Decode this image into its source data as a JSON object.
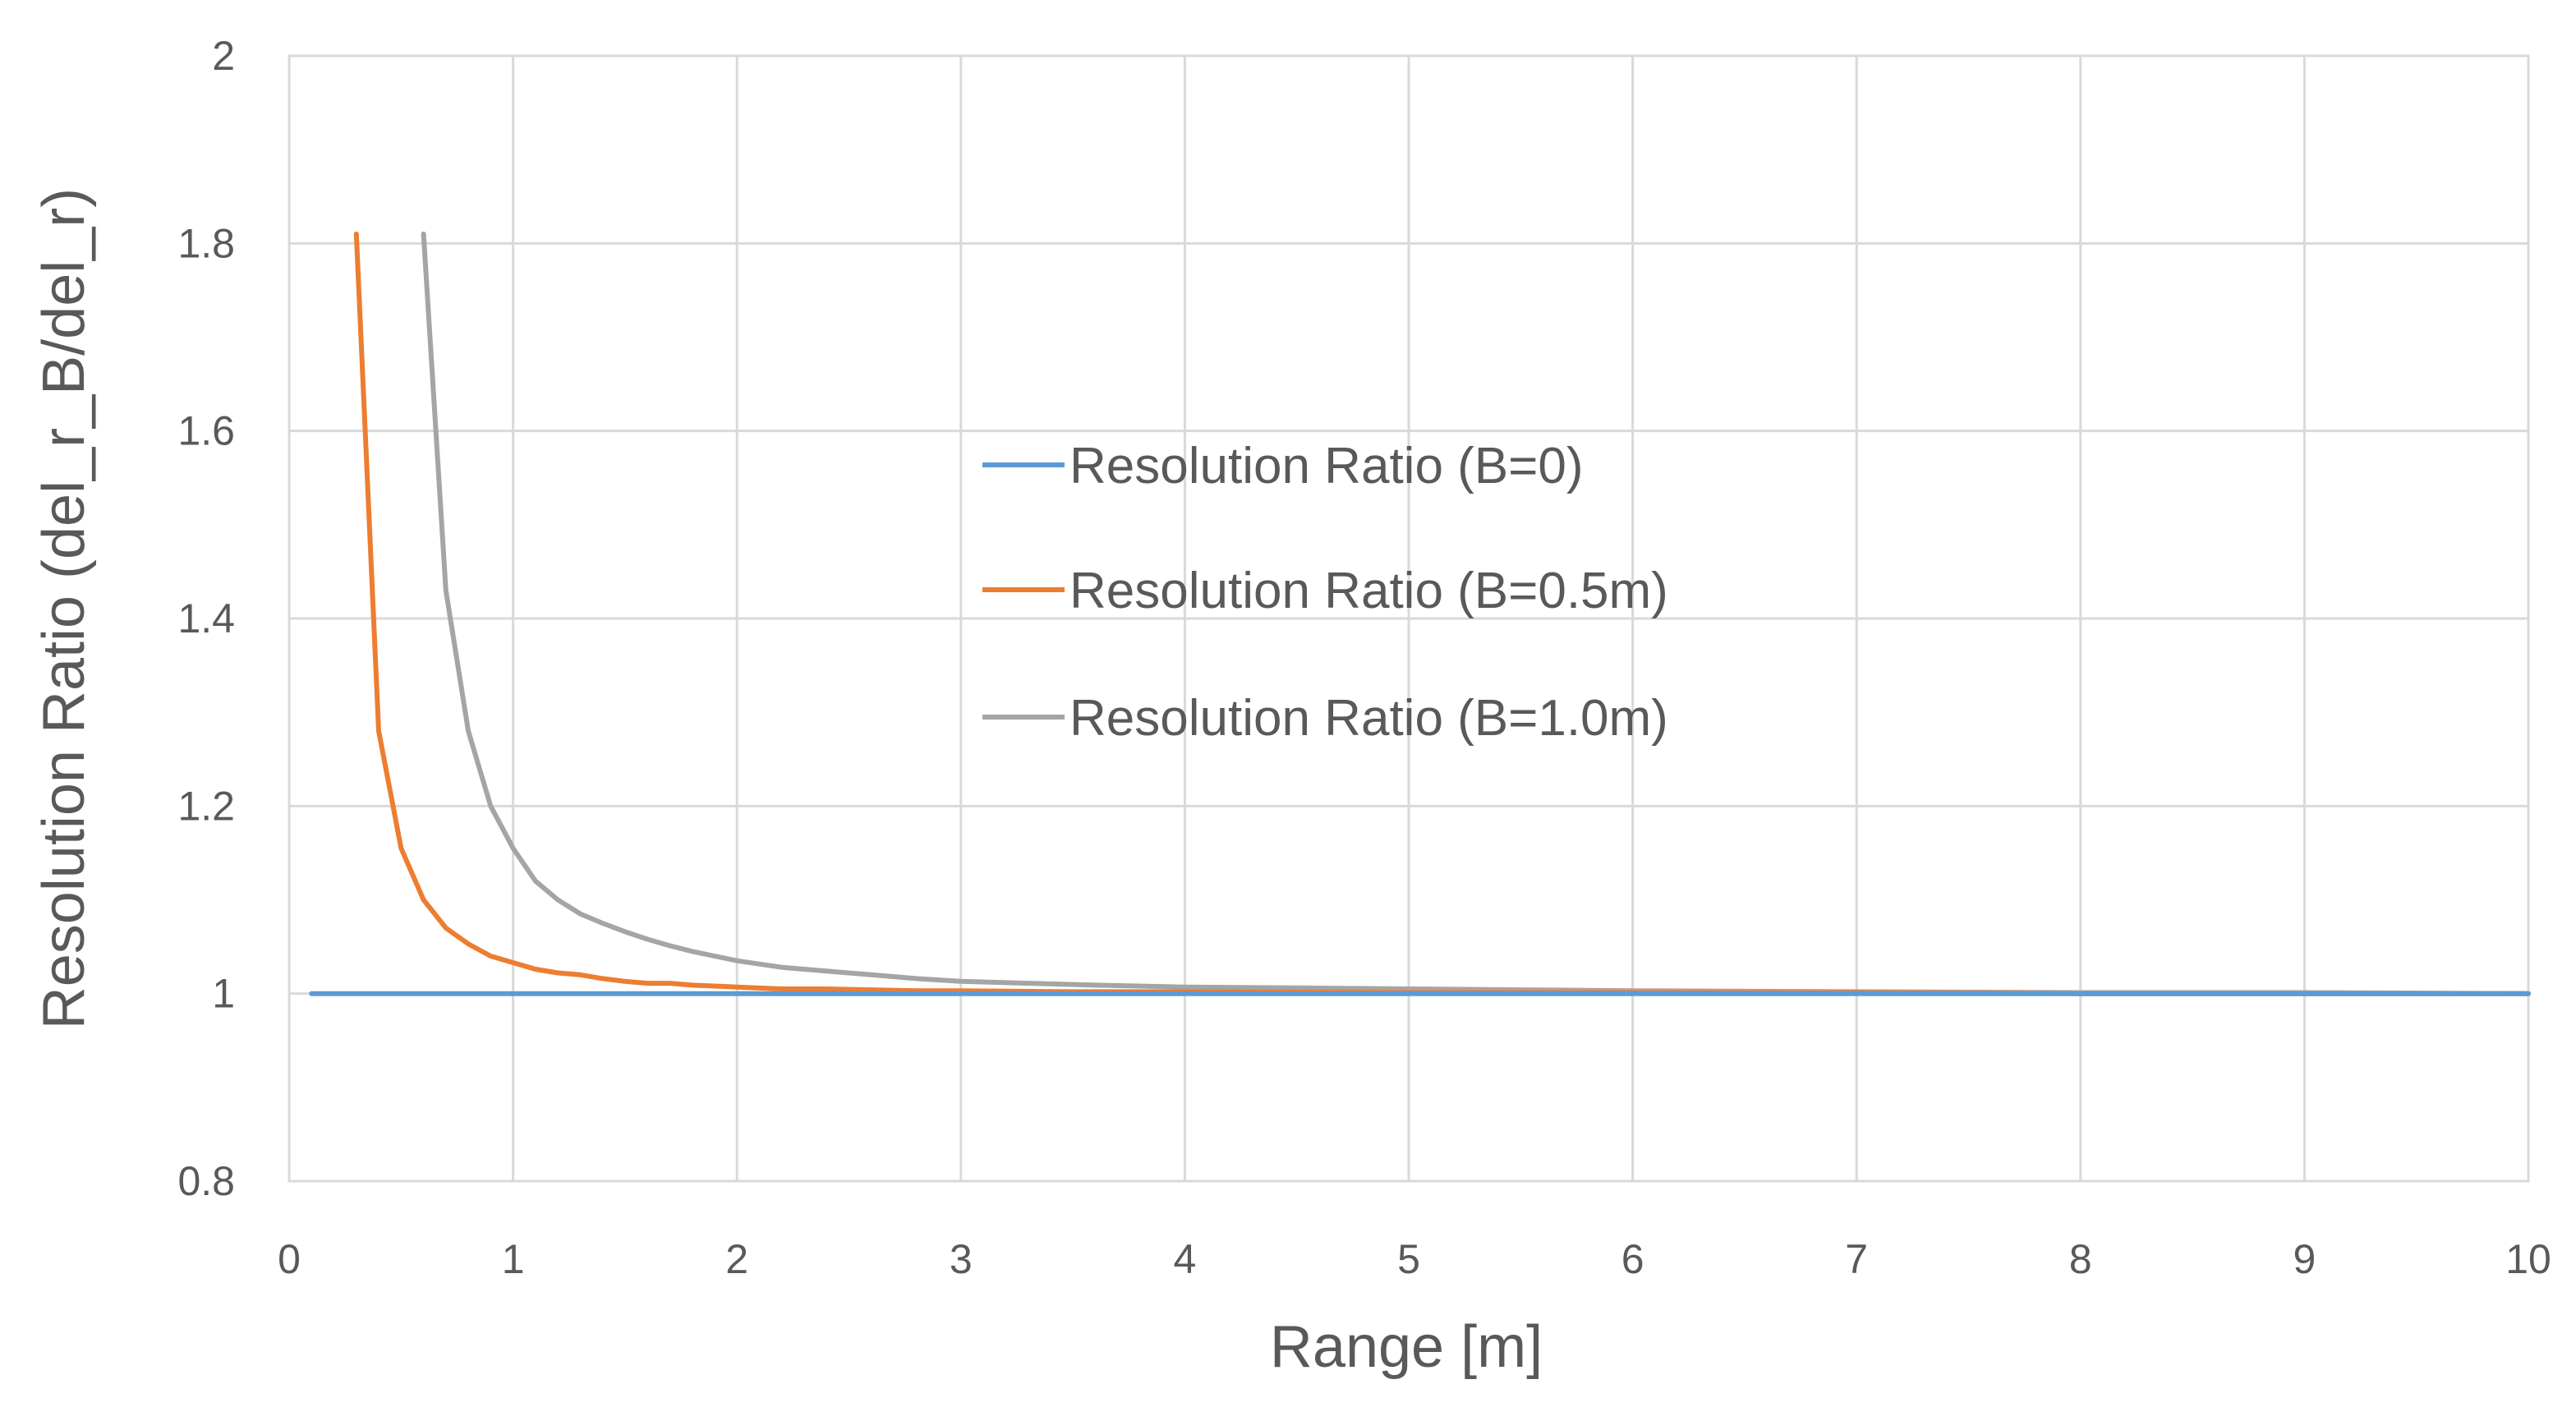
{
  "chart_data": {
    "type": "line",
    "title": "",
    "xlabel": "Range [m]",
    "ylabel": "Resolution Ratio (del_r_B/del_r)",
    "xlim": [
      0,
      10
    ],
    "ylim": [
      0.8,
      2
    ],
    "xticks": [
      "0",
      "1",
      "2",
      "3",
      "4",
      "5",
      "6",
      "7",
      "8",
      "9",
      "10"
    ],
    "yticks": [
      "0.8",
      "1",
      "1.2",
      "1.4",
      "1.6",
      "1.8",
      "2"
    ],
    "grid": true,
    "legend_position": "center",
    "series": [
      {
        "name": "Resolution Ratio (B=0)",
        "color": "#5B9BD5",
        "x": [
          0.1,
          1,
          2,
          3,
          4,
          5,
          6,
          7,
          8,
          9,
          10
        ],
        "y": [
          1,
          1,
          1,
          1,
          1,
          1,
          1,
          1,
          1,
          1,
          1
        ]
      },
      {
        "name": "Resolution Ratio (B=0.5m)",
        "color": "#ED7D31",
        "x": [
          0.3,
          0.4,
          0.5,
          0.6,
          0.7,
          0.8,
          0.9,
          1.0,
          1.1,
          1.2,
          1.3,
          1.4,
          1.5,
          1.6,
          1.7,
          1.8,
          1.9,
          2.0,
          2.2,
          2.4,
          2.6,
          2.8,
          3.0,
          3.5,
          4.0,
          5.0,
          6.0,
          7.0,
          8.0,
          9.0,
          10.0
        ],
        "y": [
          1.81,
          1.28,
          1.155,
          1.1,
          1.07,
          1.053,
          1.04,
          1.033,
          1.026,
          1.022,
          1.02,
          1.016,
          1.013,
          1.011,
          1.011,
          1.009,
          1.008,
          1.007,
          1.005,
          1.005,
          1.004,
          1.003,
          1.003,
          1.002,
          1.002,
          1.001,
          1.001,
          1.001,
          1.0,
          1.0,
          1.0
        ]
      },
      {
        "name": "Resolution Ratio (B=1.0m)",
        "color": "#A5A5A5",
        "x": [
          0.6,
          0.7,
          0.8,
          0.9,
          1.0,
          1.1,
          1.2,
          1.3,
          1.4,
          1.5,
          1.6,
          1.7,
          1.8,
          1.9,
          2.0,
          2.2,
          2.4,
          2.6,
          2.8,
          3.0,
          3.3,
          3.6,
          4.0,
          4.5,
          5.0,
          5.5,
          6.0,
          7.0,
          8.0,
          9.0,
          10.0
        ],
        "y": [
          1.81,
          1.43,
          1.28,
          1.2,
          1.155,
          1.12,
          1.1,
          1.085,
          1.075,
          1.066,
          1.058,
          1.051,
          1.045,
          1.04,
          1.035,
          1.028,
          1.024,
          1.02,
          1.016,
          1.013,
          1.011,
          1.009,
          1.007,
          1.006,
          1.005,
          1.004,
          1.003,
          1.002,
          1.001,
          1.001,
          1.0
        ]
      }
    ]
  }
}
